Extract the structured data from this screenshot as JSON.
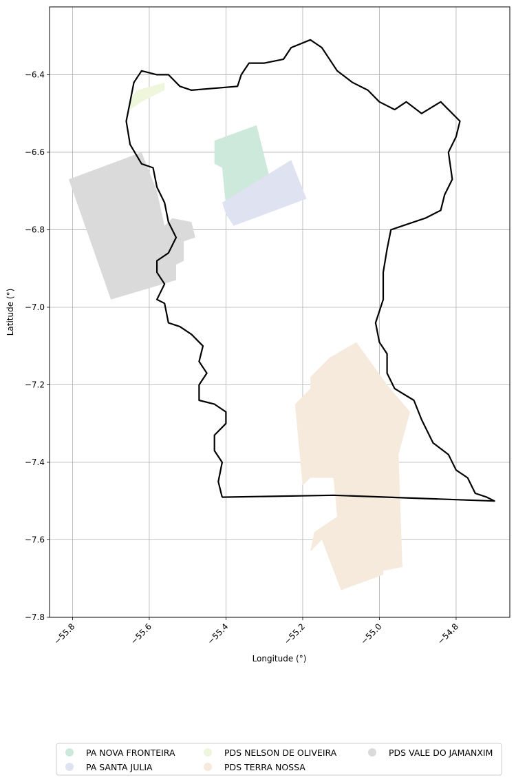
{
  "chart_data": {
    "type": "map",
    "xlabel": "Longitude (°)",
    "ylabel": "Latitude (°)",
    "xlim": [
      -55.86,
      -54.66
    ],
    "ylim": [
      -7.8,
      -6.225
    ],
    "grid": true,
    "legend_placement": "bottom-center",
    "x_ticks": [
      -55.8,
      -55.6,
      -55.4,
      -55.2,
      -55.0,
      -54.8
    ],
    "y_ticks": [
      -6.4,
      -6.6,
      -6.8,
      -7.0,
      -7.2,
      -7.4,
      -7.6,
      -7.8
    ],
    "x_tick_labels": [
      "−55.8",
      "−55.6",
      "−55.4",
      "−55.2",
      "−55.0",
      "−54.8"
    ],
    "y_tick_labels": [
      "−6.4",
      "−6.6",
      "−6.8",
      "−7.0",
      "−7.2",
      "−7.4",
      "−7.6",
      "−7.8"
    ],
    "boundary": {
      "color": "#000000",
      "coords": [
        [
          -55.41,
          -7.49
        ],
        [
          -55.42,
          -7.45
        ],
        [
          -55.41,
          -7.4
        ],
        [
          -55.43,
          -7.37
        ],
        [
          -55.43,
          -7.33
        ],
        [
          -55.4,
          -7.3
        ],
        [
          -55.4,
          -7.27
        ],
        [
          -55.43,
          -7.25
        ],
        [
          -55.47,
          -7.24
        ],
        [
          -55.47,
          -7.2
        ],
        [
          -55.45,
          -7.17
        ],
        [
          -55.47,
          -7.14
        ],
        [
          -55.46,
          -7.1
        ],
        [
          -55.49,
          -7.07
        ],
        [
          -55.52,
          -7.05
        ],
        [
          -55.55,
          -7.04
        ],
        [
          -55.56,
          -6.99
        ],
        [
          -55.58,
          -6.98
        ],
        [
          -55.56,
          -6.94
        ],
        [
          -55.58,
          -6.91
        ],
        [
          -55.58,
          -6.88
        ],
        [
          -55.55,
          -6.86
        ],
        [
          -55.53,
          -6.82
        ],
        [
          -55.55,
          -6.78
        ],
        [
          -55.56,
          -6.73
        ],
        [
          -55.58,
          -6.69
        ],
        [
          -55.59,
          -6.64
        ],
        [
          -55.62,
          -6.63
        ],
        [
          -55.65,
          -6.58
        ],
        [
          -55.66,
          -6.52
        ],
        [
          -55.65,
          -6.47
        ],
        [
          -55.64,
          -6.42
        ],
        [
          -55.62,
          -6.39
        ],
        [
          -55.58,
          -6.4
        ],
        [
          -55.55,
          -6.4
        ],
        [
          -55.52,
          -6.43
        ],
        [
          -55.49,
          -6.44
        ],
        [
          -55.37,
          -6.43
        ],
        [
          -55.36,
          -6.4
        ],
        [
          -55.34,
          -6.37
        ],
        [
          -55.3,
          -6.37
        ],
        [
          -55.25,
          -6.36
        ],
        [
          -55.23,
          -6.33
        ],
        [
          -55.18,
          -6.31
        ],
        [
          -55.15,
          -6.33
        ],
        [
          -55.11,
          -6.39
        ],
        [
          -55.07,
          -6.42
        ],
        [
          -55.03,
          -6.44
        ],
        [
          -55.0,
          -6.47
        ],
        [
          -54.96,
          -6.49
        ],
        [
          -54.93,
          -6.47
        ],
        [
          -54.89,
          -6.5
        ],
        [
          -54.84,
          -6.47
        ],
        [
          -54.79,
          -6.52
        ],
        [
          -54.8,
          -6.56
        ],
        [
          -54.82,
          -6.6
        ],
        [
          -54.81,
          -6.67
        ],
        [
          -54.83,
          -6.71
        ],
        [
          -54.84,
          -6.75
        ],
        [
          -54.88,
          -6.77
        ],
        [
          -54.94,
          -6.79
        ],
        [
          -54.97,
          -6.8
        ],
        [
          -54.98,
          -6.85
        ],
        [
          -54.99,
          -6.91
        ],
        [
          -54.99,
          -6.98
        ],
        [
          -55.01,
          -7.04
        ],
        [
          -55.0,
          -7.09
        ],
        [
          -54.98,
          -7.12
        ],
        [
          -54.98,
          -7.17
        ],
        [
          -54.96,
          -7.21
        ],
        [
          -54.91,
          -7.24
        ],
        [
          -54.89,
          -7.29
        ],
        [
          -54.86,
          -7.35
        ],
        [
          -54.82,
          -7.38
        ],
        [
          -54.8,
          -7.42
        ],
        [
          -54.77,
          -7.44
        ],
        [
          -54.75,
          -7.48
        ],
        [
          -54.72,
          -7.49
        ],
        [
          -54.7,
          -7.5
        ],
        [
          -55.12,
          -7.485
        ],
        [
          -55.41,
          -7.49
        ]
      ]
    },
    "series": [
      {
        "name": "PA NOVA FRONTEIRA",
        "color": "#cde9dc",
        "polygon": [
          [
            -55.43,
            -6.57
          ],
          [
            -55.32,
            -6.53
          ],
          [
            -55.28,
            -6.69
          ],
          [
            -55.4,
            -6.74
          ],
          [
            -55.41,
            -6.64
          ],
          [
            -55.43,
            -6.63
          ]
        ]
      },
      {
        "name": "PA SANTA JULIA",
        "color": "#dfe2f0",
        "polygon": [
          [
            -55.41,
            -6.73
          ],
          [
            -55.23,
            -6.62
          ],
          [
            -55.19,
            -6.72
          ],
          [
            -55.38,
            -6.79
          ],
          [
            -55.4,
            -6.76
          ]
        ]
      },
      {
        "name": "PDS NELSON DE OLIVEIRA",
        "color": "#eef6dc",
        "polygon": [
          [
            -55.65,
            -6.46
          ],
          [
            -55.63,
            -6.44
          ],
          [
            -55.56,
            -6.42
          ],
          [
            -55.56,
            -6.44
          ],
          [
            -55.62,
            -6.47
          ],
          [
            -55.65,
            -6.49
          ]
        ]
      },
      {
        "name": "PDS TERRA NOSSA",
        "color": "#f5eadc",
        "polygon": [
          [
            -55.22,
            -7.25
          ],
          [
            -55.18,
            -7.21
          ],
          [
            -55.18,
            -7.18
          ],
          [
            -55.13,
            -7.13
          ],
          [
            -55.06,
            -7.09
          ],
          [
            -54.98,
            -7.2
          ],
          [
            -54.92,
            -7.27
          ],
          [
            -54.95,
            -7.38
          ],
          [
            -54.94,
            -7.67
          ],
          [
            -54.99,
            -7.68
          ],
          [
            -54.99,
            -7.69
          ],
          [
            -55.1,
            -7.73
          ],
          [
            -55.15,
            -7.6
          ],
          [
            -55.18,
            -7.63
          ],
          [
            -55.17,
            -7.58
          ],
          [
            -55.11,
            -7.54
          ],
          [
            -55.12,
            -7.44
          ],
          [
            -55.18,
            -7.44
          ],
          [
            -55.2,
            -7.46
          ]
        ]
      },
      {
        "name": "PDS VALE DO JAMANXIM",
        "color": "#dadada",
        "polygon": [
          [
            -55.81,
            -6.67
          ],
          [
            -55.62,
            -6.6
          ],
          [
            -55.58,
            -6.7
          ],
          [
            -55.56,
            -6.79
          ],
          [
            -55.54,
            -6.77
          ],
          [
            -55.49,
            -6.78
          ],
          [
            -55.48,
            -6.82
          ],
          [
            -55.51,
            -6.83
          ],
          [
            -55.51,
            -6.88
          ],
          [
            -55.53,
            -6.89
          ],
          [
            -55.53,
            -6.93
          ],
          [
            -55.7,
            -6.98
          ]
        ]
      }
    ]
  },
  "legend": {
    "items": [
      {
        "label": "PA NOVA FRONTEIRA",
        "color": "#cde9dc"
      },
      {
        "label": "PA SANTA JULIA",
        "color": "#dfe2f0"
      },
      {
        "label": "PDS NELSON DE OLIVEIRA",
        "color": "#eef6dc"
      },
      {
        "label": "PDS TERRA NOSSA",
        "color": "#f5eadc"
      },
      {
        "label": "PDS VALE DO JAMANXIM",
        "color": "#dadada"
      }
    ]
  }
}
